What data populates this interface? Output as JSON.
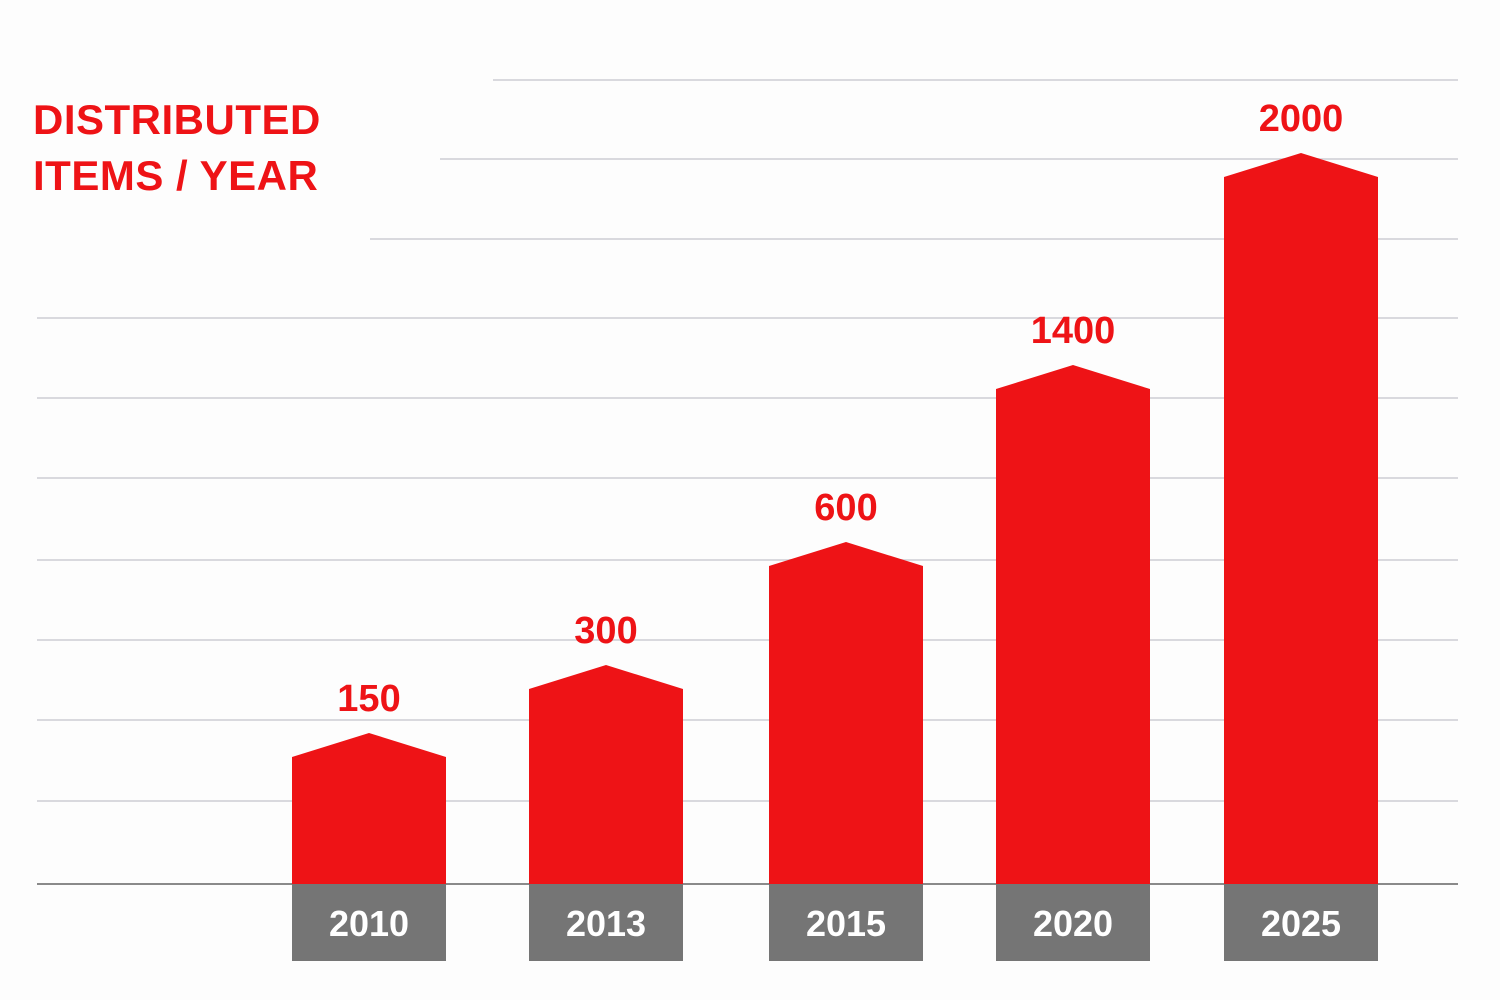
{
  "title": {
    "line1": "DISTRIBUTED",
    "line2": "ITEMS / YEAR"
  },
  "colors": {
    "bar": "#ee1316",
    "label": "#ee1316",
    "year_box": "#757575",
    "year_text": "#ffffff",
    "grid": "#d9d9de",
    "baseline": "#8a8a8a"
  },
  "chart_data": {
    "type": "bar",
    "title": "DISTRIBUTED ITEMS / YEAR",
    "xlabel": "",
    "ylabel": "Distributed items",
    "categories": [
      "2010",
      "2013",
      "2015",
      "2020",
      "2025"
    ],
    "values": [
      150,
      300,
      600,
      1400,
      2000
    ],
    "value_labels": [
      "150",
      "300",
      "600",
      "1400",
      "2000"
    ],
    "grid": true,
    "legend": null,
    "notes": "Bars drawn with arrow-shaped (peaked) tops; bar heights are illustrative rather than linear to value"
  }
}
